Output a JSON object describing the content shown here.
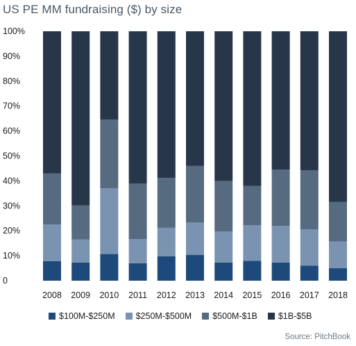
{
  "chart_data": {
    "type": "bar",
    "stacked": true,
    "title": "US PE MM fundraising ($) by size",
    "source": "Source: PitchBook",
    "categories": [
      "2008",
      "2009",
      "2010",
      "2011",
      "2012",
      "2013",
      "2014",
      "2015",
      "2016",
      "2017",
      "2018"
    ],
    "y_ticks": [
      "0",
      "10%",
      "20%",
      "30%",
      "40%",
      "50%",
      "60%",
      "70%",
      "80%",
      "90%",
      "100%"
    ],
    "ylim": [
      0,
      100
    ],
    "grid": false,
    "legend_position": "bottom",
    "series": [
      {
        "name": "$100M-$250M",
        "color": "#1d4a7a",
        "values": [
          7.8,
          7.3,
          10.7,
          7.0,
          9.8,
          10.3,
          7.3,
          8.0,
          7.3,
          6.0,
          5.0
        ]
      },
      {
        "name": "$250M-$500M",
        "color": "#7a93b0",
        "values": [
          14.7,
          9.2,
          26.3,
          9.7,
          11.4,
          13.0,
          12.4,
          14.2,
          14.7,
          14.6,
          10.7
        ]
      },
      {
        "name": "$500M-$1B",
        "color": "#566a80",
        "values": [
          20.5,
          13.7,
          27.6,
          22.3,
          20.0,
          22.7,
          20.3,
          15.8,
          22.5,
          23.7,
          15.9
        ]
      },
      {
        "name": "$1B-$5B",
        "color": "#28364a",
        "values": [
          57.0,
          69.8,
          35.4,
          61.0,
          58.8,
          54.0,
          60.0,
          62.0,
          55.5,
          55.7,
          68.4
        ]
      }
    ]
  }
}
